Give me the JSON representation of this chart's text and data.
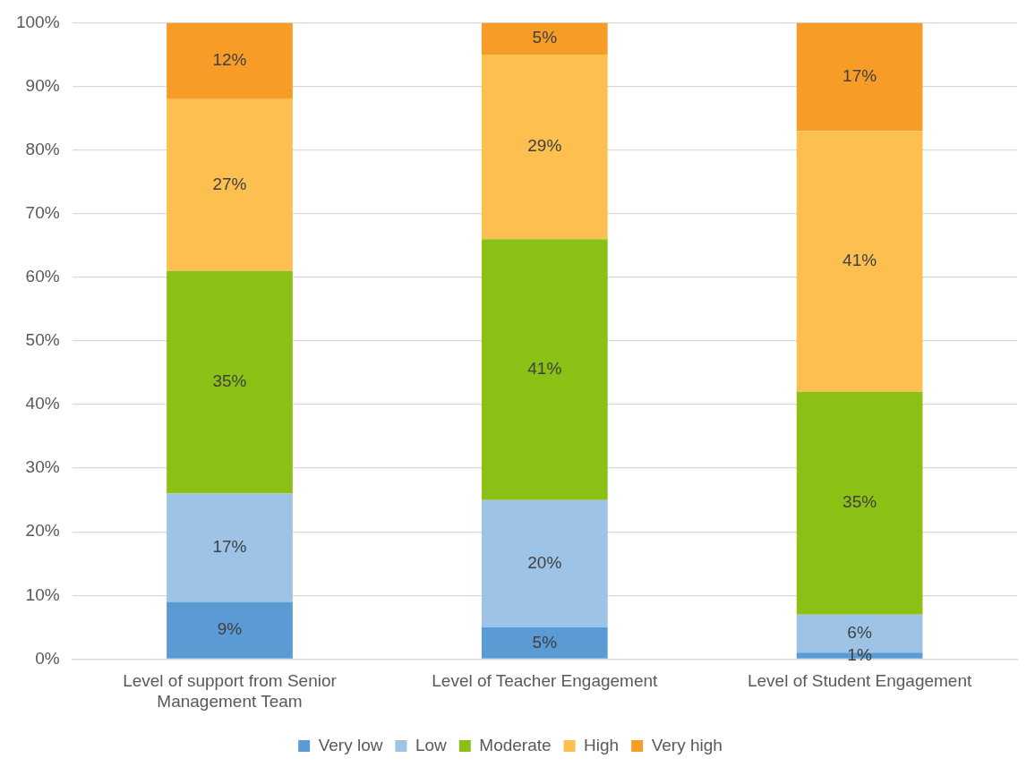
{
  "chart_data": {
    "type": "bar",
    "stacked": true,
    "categories": [
      "Level of support from Senior Management Team",
      "Level of Teacher Engagement",
      "Level of Student Engagement"
    ],
    "series": [
      {
        "name": "Very low",
        "color": "#5b9bd5",
        "values": [
          9,
          5,
          1
        ],
        "value_labels": [
          "9%",
          "5%",
          "1%"
        ]
      },
      {
        "name": "Low",
        "color": "#9dc3e6",
        "values": [
          17,
          20,
          6
        ],
        "value_labels": [
          "17%",
          "20%",
          "6%"
        ]
      },
      {
        "name": "Moderate",
        "color": "#8bc014",
        "values": [
          35,
          41,
          35
        ],
        "value_labels": [
          "35%",
          "41%",
          "35%"
        ]
      },
      {
        "name": "High",
        "color": "#fdbf4f",
        "values": [
          27,
          29,
          41
        ],
        "value_labels": [
          "27%",
          "29%",
          "41%"
        ]
      },
      {
        "name": "Very high",
        "color": "#f89c28",
        "values": [
          12,
          5,
          17
        ],
        "value_labels": [
          "12%",
          "5%",
          "17%"
        ]
      }
    ],
    "ylim": [
      0,
      100
    ],
    "yticks": [
      {
        "value": 0,
        "label": "0%"
      },
      {
        "value": 10,
        "label": "10%"
      },
      {
        "value": 20,
        "label": "20%"
      },
      {
        "value": 30,
        "label": "30%"
      },
      {
        "value": 40,
        "label": "40%"
      },
      {
        "value": 50,
        "label": "50%"
      },
      {
        "value": 60,
        "label": "60%"
      },
      {
        "value": 70,
        "label": "70%"
      },
      {
        "value": 80,
        "label": "80%"
      },
      {
        "value": 90,
        "label": "90%"
      },
      {
        "value": 100,
        "label": "100%"
      }
    ],
    "grid": "y",
    "legend": "bottom"
  }
}
